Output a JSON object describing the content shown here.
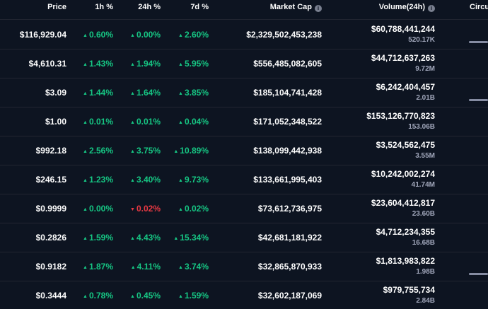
{
  "header": {
    "price": "Price",
    "h1": "1h %",
    "h24": "24h %",
    "d7": "7d %",
    "market_cap": "Market Cap",
    "volume": "Volume(24h)",
    "circulating": "Circu"
  },
  "colors": {
    "positive": "#16c784",
    "negative": "#ea3943",
    "background": "#0d1421"
  },
  "rows": [
    {
      "price": "$116,929.04",
      "h1": "0.60%",
      "h1_dir": "up",
      "h24": "0.00%",
      "h24_dir": "up",
      "d7": "2.60%",
      "d7_dir": "up",
      "market_cap": "$2,329,502,453,238",
      "volume": "$60,788,441,244",
      "volume_sub": "520.17K",
      "supply_bar": true
    },
    {
      "price": "$4,610.31",
      "h1": "1.43%",
      "h1_dir": "up",
      "h24": "1.94%",
      "h24_dir": "up",
      "d7": "5.95%",
      "d7_dir": "up",
      "market_cap": "$556,485,082,605",
      "volume": "$44,712,637,263",
      "volume_sub": "9.72M",
      "supply_bar": false
    },
    {
      "price": "$3.09",
      "h1": "1.44%",
      "h1_dir": "up",
      "h24": "1.64%",
      "h24_dir": "up",
      "d7": "3.85%",
      "d7_dir": "up",
      "market_cap": "$185,104,741,428",
      "volume": "$6,242,404,457",
      "volume_sub": "2.01B",
      "supply_bar": true
    },
    {
      "price": "$1.00",
      "h1": "0.01%",
      "h1_dir": "up",
      "h24": "0.01%",
      "h24_dir": "up",
      "d7": "0.04%",
      "d7_dir": "up",
      "market_cap": "$171,052,348,522",
      "volume": "$153,126,770,823",
      "volume_sub": "153.06B",
      "supply_bar": false
    },
    {
      "price": "$992.18",
      "h1": "2.56%",
      "h1_dir": "up",
      "h24": "3.75%",
      "h24_dir": "up",
      "d7": "10.89%",
      "d7_dir": "up",
      "market_cap": "$138,099,442,938",
      "volume": "$3,524,562,475",
      "volume_sub": "3.55M",
      "supply_bar": false
    },
    {
      "price": "$246.15",
      "h1": "1.23%",
      "h1_dir": "up",
      "h24": "3.40%",
      "h24_dir": "up",
      "d7": "9.73%",
      "d7_dir": "up",
      "market_cap": "$133,661,995,403",
      "volume": "$10,242,002,274",
      "volume_sub": "41.74M",
      "supply_bar": false
    },
    {
      "price": "$0.9999",
      "h1": "0.00%",
      "h1_dir": "up",
      "h24": "0.02%",
      "h24_dir": "down",
      "d7": "0.02%",
      "d7_dir": "up",
      "market_cap": "$73,612,736,975",
      "volume": "$23,604,412,817",
      "volume_sub": "23.60B",
      "supply_bar": false
    },
    {
      "price": "$0.2826",
      "h1": "1.59%",
      "h1_dir": "up",
      "h24": "4.43%",
      "h24_dir": "up",
      "d7": "15.34%",
      "d7_dir": "up",
      "market_cap": "$42,681,181,922",
      "volume": "$4,712,234,355",
      "volume_sub": "16.68B",
      "supply_bar": false
    },
    {
      "price": "$0.9182",
      "h1": "1.87%",
      "h1_dir": "up",
      "h24": "4.11%",
      "h24_dir": "up",
      "d7": "3.74%",
      "d7_dir": "up",
      "market_cap": "$32,865,870,933",
      "volume": "$1,813,983,822",
      "volume_sub": "1.98B",
      "supply_bar": true
    },
    {
      "price": "$0.3444",
      "h1": "0.78%",
      "h1_dir": "up",
      "h24": "0.45%",
      "h24_dir": "up",
      "d7": "1.59%",
      "d7_dir": "up",
      "market_cap": "$32,602,187,069",
      "volume": "$979,755,734",
      "volume_sub": "2.84B",
      "supply_bar": false
    }
  ]
}
